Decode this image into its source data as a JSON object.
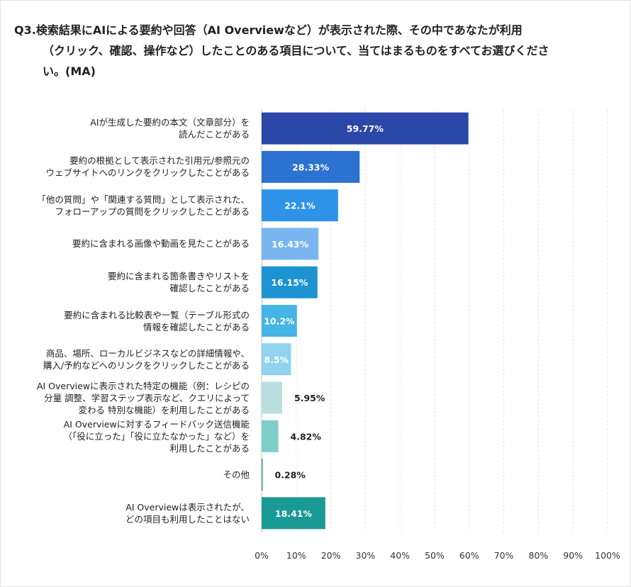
{
  "question": {
    "lines": [
      "Q3.検索結果にAIによる要約や回答（AI Overviewなど）が表示された際、その中であなたが利用",
      "（クリック、確認、操作など）したことのある項目について、当てはまるものをすべてお選びくださ",
      "い。(MA)"
    ]
  },
  "chart_data": {
    "type": "bar",
    "orientation": "horizontal",
    "categories": [
      [
        "AIが生成した要約の本文（文章部分）を",
        "読んだことがある"
      ],
      [
        "要約の根拠として表示された引用元/参照元の",
        "ウェブサイトへのリンクをクリックしたことがある"
      ],
      [
        "「他の質問」や「関連する質問」として表示された、",
        "フォローアップの質問をクリックしたことがある"
      ],
      [
        "要約に含まれる画像や動画を見たことがある"
      ],
      [
        "要約に含まれる箇条書きやリストを",
        "確認したことがある"
      ],
      [
        "要約に含まれる比較表や一覧（テーブル形式の",
        "情報を確認したことがある"
      ],
      [
        "商品、場所、ローカルビジネスなどの詳細情報や、",
        "購入/予約などへのリンクをクリックしたことがある"
      ],
      [
        "AI Overviewに表示された特定の機能（例：レシピの",
        "分量 調整、学習ステップ表示など、クエリによって",
        "変わる 特別な機能）を利用したことがある"
      ],
      [
        "AI Overviewに対するフィードバック送信機能",
        "（「役に立った」「役に立たなかった」など）を",
        "利用したことがある"
      ],
      [
        "その他"
      ],
      [
        "AI Overviewは表示されたが、",
        "どの項目も利用したことはない"
      ]
    ],
    "values": [
      59.77,
      28.33,
      22.1,
      16.43,
      16.15,
      10.2,
      8.5,
      5.95,
      4.82,
      0.28,
      18.41
    ],
    "value_labels": [
      "59.77%",
      "28.33%",
      "22.1%",
      "16.43%",
      "16.15%",
      "10.2%",
      "8.5%",
      "5.95%",
      "4.82%",
      "0.28%",
      "18.41%"
    ],
    "colors": [
      "#2b47a8",
      "#2b72d1",
      "#2e93e8",
      "#79b6ef",
      "#1e93d2",
      "#45b4e6",
      "#8fd3ef",
      "#b9dee0",
      "#7fcdc8",
      "#2aa39a",
      "#199a94"
    ],
    "label_inside": [
      true,
      true,
      true,
      true,
      true,
      true,
      true,
      false,
      false,
      false,
      true
    ],
    "xlim": [
      0,
      100
    ],
    "x_ticks": [
      0,
      10,
      20,
      30,
      40,
      50,
      60,
      70,
      80,
      90,
      100
    ],
    "x_tick_labels": [
      "0%",
      "10%",
      "20%",
      "30%",
      "40%",
      "50%",
      "60%",
      "70%",
      "80%",
      "90%",
      "100%"
    ],
    "grid": true,
    "title": "",
    "xlabel": "",
    "ylabel": ""
  }
}
